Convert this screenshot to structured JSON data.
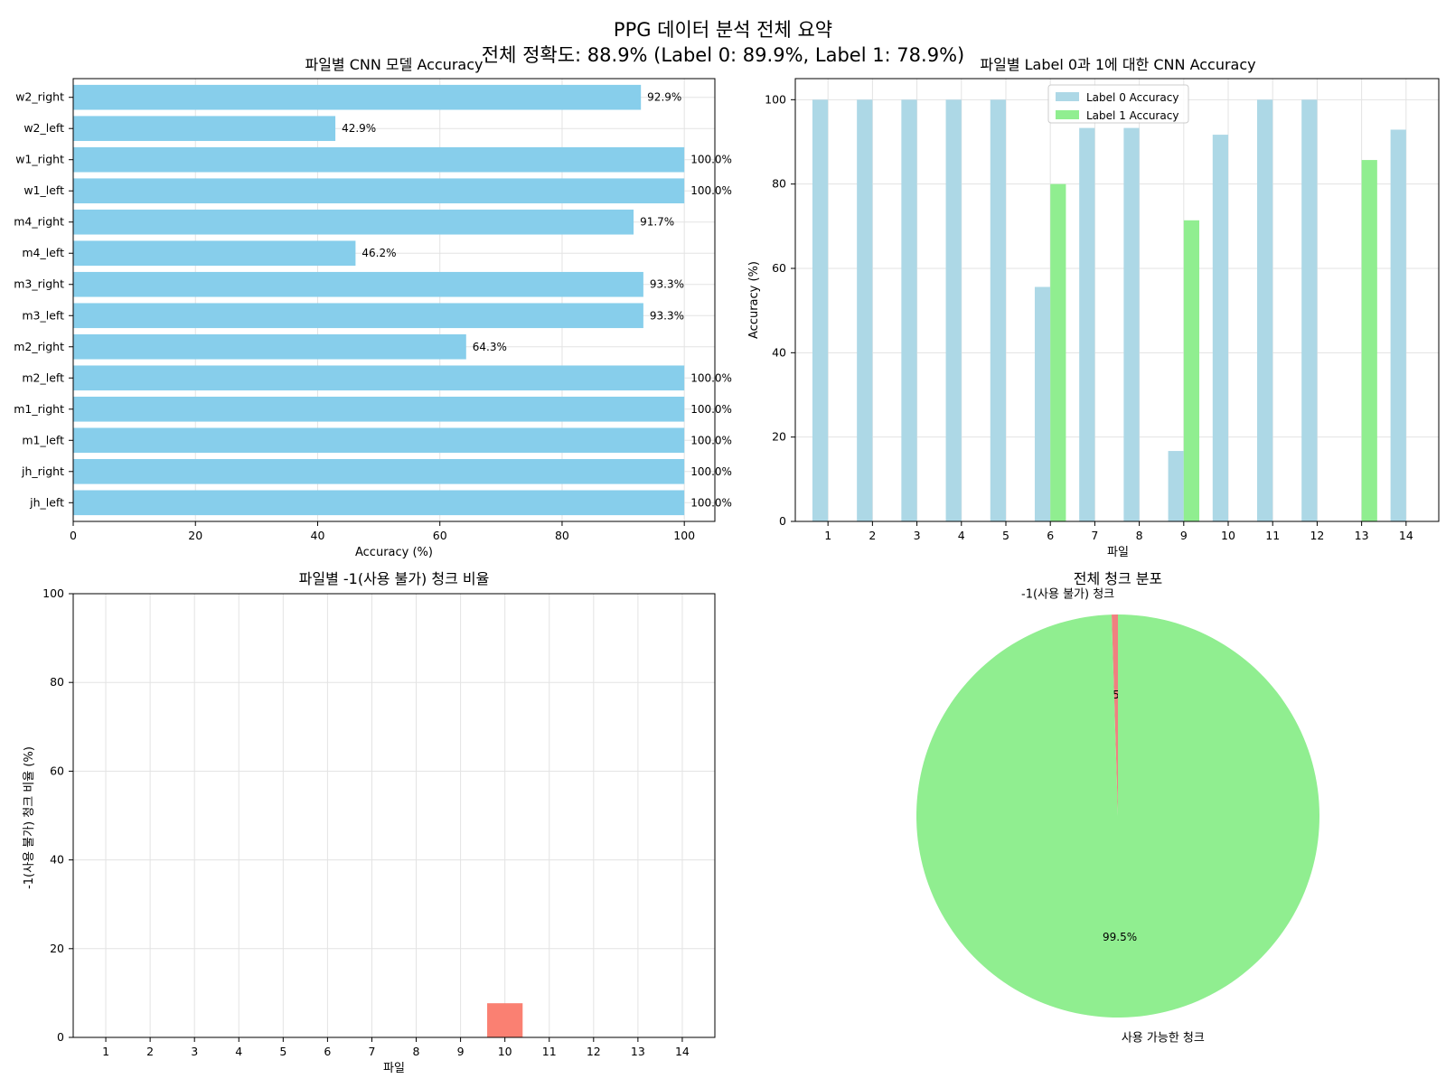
{
  "figure": {
    "suptitle_line1": "PPG 데이터 분석 전체 요약",
    "suptitle_line2": "전체 정확도: 88.9% (Label 0: 89.9%, Label 1: 78.9%)"
  },
  "colors": {
    "skyblue": "#87ceeb",
    "lightblue": "#add8e6",
    "lightgreen": "#90ee90",
    "salmon": "#fa8072",
    "lightcoral": "#f08080"
  },
  "chart_data": [
    {
      "type": "bar",
      "orientation": "horizontal",
      "title": "파일별 CNN 모델 Accuracy",
      "xlabel": "Accuracy (%)",
      "ylabel": "",
      "xlim": [
        0,
        105
      ],
      "xticks": [
        "0",
        "20",
        "40",
        "60",
        "80",
        "100"
      ],
      "grid": true,
      "categories": [
        "jh_left",
        "jh_right",
        "m1_left",
        "m1_right",
        "m2_left",
        "m2_right",
        "m3_left",
        "m3_right",
        "m4_left",
        "m4_right",
        "w1_left",
        "w1_right",
        "w2_left",
        "w2_right"
      ],
      "values": [
        100.0,
        100.0,
        100.0,
        100.0,
        100.0,
        64.3,
        93.3,
        93.3,
        46.2,
        91.7,
        100.0,
        100.0,
        42.9,
        92.9
      ],
      "value_labels": [
        "100.0%",
        "100.0%",
        "100.0%",
        "100.0%",
        "100.0%",
        "64.3%",
        "93.3%",
        "93.3%",
        "46.2%",
        "91.7%",
        "100.0%",
        "100.0%",
        "42.9%",
        "92.9%"
      ],
      "color": "#87ceeb"
    },
    {
      "type": "bar",
      "title": "파일별 Label 0과 1에 대한 CNN Accuracy",
      "xlabel": "파일",
      "ylabel": "Accuracy (%)",
      "ylim": [
        0,
        105
      ],
      "yticks": [
        "0",
        "20",
        "40",
        "60",
        "80",
        "100"
      ],
      "grid": true,
      "legend_position": "top-center",
      "categories": [
        "1",
        "2",
        "3",
        "4",
        "5",
        "6",
        "7",
        "8",
        "9",
        "10",
        "11",
        "12",
        "13",
        "14"
      ],
      "series": [
        {
          "name": "Label 0 Accuracy",
          "color": "#add8e6",
          "values": [
            100,
            100,
            100,
            100,
            100,
            55.6,
            93.3,
            93.3,
            16.7,
            91.7,
            100,
            100,
            0,
            92.9
          ]
        },
        {
          "name": "Label 1 Accuracy",
          "color": "#90ee90",
          "values": [
            0,
            0,
            0,
            0,
            0,
            80.0,
            0,
            0,
            71.4,
            0,
            0,
            0,
            85.7,
            0
          ]
        }
      ]
    },
    {
      "type": "bar",
      "title": "파일별 -1(사용 불가) 청크 비율",
      "xlabel": "파일",
      "ylabel": "-1(사용 불가) 청크 비율 (%)",
      "ylim": [
        0,
        100
      ],
      "yticks": [
        "0",
        "20",
        "40",
        "60",
        "80",
        "100"
      ],
      "grid": true,
      "categories": [
        "1",
        "2",
        "3",
        "4",
        "5",
        "6",
        "7",
        "8",
        "9",
        "10",
        "11",
        "12",
        "13",
        "14"
      ],
      "values": [
        0,
        0,
        0,
        0,
        0,
        0,
        0,
        0,
        0,
        7.7,
        0,
        0,
        0,
        0
      ],
      "color": "#fa8072"
    },
    {
      "type": "pie",
      "title": "전체 청크 분포",
      "slices": [
        {
          "label": "-1(사용 불가) 청크",
          "value": 0.5,
          "pct_label": "0.5%",
          "color": "#f08080"
        },
        {
          "label": "사용 가능한 청크",
          "value": 99.5,
          "pct_label": "99.5%",
          "color": "#90ee90"
        }
      ]
    }
  ]
}
